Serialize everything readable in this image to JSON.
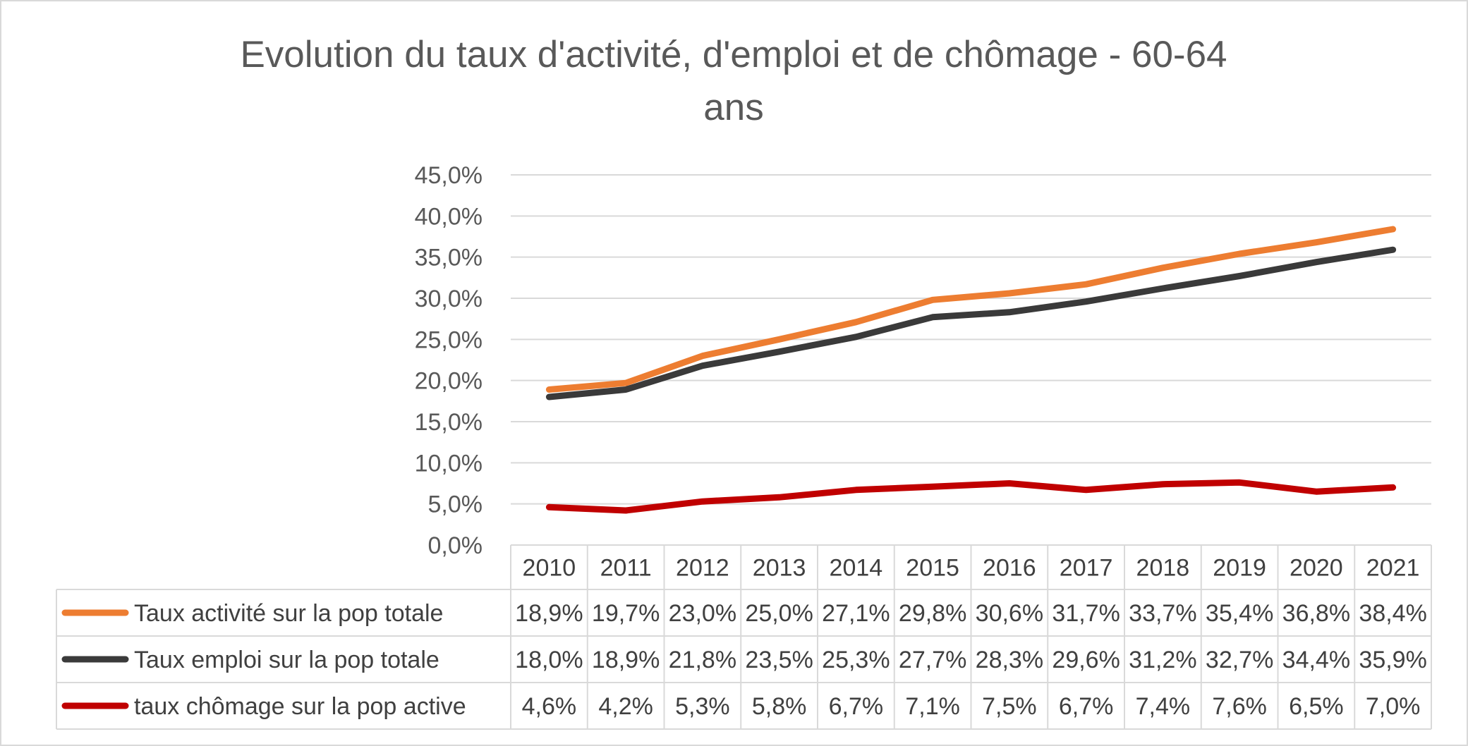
{
  "chart_data": {
    "type": "line",
    "title": "Evolution du taux d'activité, d'emploi et de chômage - 60-64 ans",
    "title_lines": [
      "Evolution du taux d'activité, d'emploi et de chômage - 60-64",
      "ans"
    ],
    "categories": [
      "2010",
      "2011",
      "2012",
      "2013",
      "2014",
      "2015",
      "2016",
      "2017",
      "2018",
      "2019",
      "2020",
      "2021"
    ],
    "ylim": [
      0,
      45
    ],
    "ytick_values": [
      0,
      5,
      10,
      15,
      20,
      25,
      30,
      35,
      40,
      45
    ],
    "ytick_labels": [
      "0,0%",
      "5,0%",
      "10,0%",
      "15,0%",
      "20,0%",
      "25,0%",
      "30,0%",
      "35,0%",
      "40,0%",
      "45,0%"
    ],
    "grid": true,
    "legend_placement": "data table below chart",
    "series": [
      {
        "name": "Taux activité sur la pop totale",
        "color": "#ED7D31",
        "values": [
          18.9,
          19.7,
          23.0,
          25.0,
          27.1,
          29.8,
          30.6,
          31.7,
          33.7,
          35.4,
          36.8,
          38.4
        ],
        "labels": [
          "18,9%",
          "19,7%",
          "23,0%",
          "25,0%",
          "27,1%",
          "29,8%",
          "30,6%",
          "31,7%",
          "33,7%",
          "35,4%",
          "36,8%",
          "38,4%"
        ]
      },
      {
        "name": "Taux emploi sur la pop totale",
        "color": "#3A3A3A",
        "values": [
          18.0,
          18.9,
          21.8,
          23.5,
          25.3,
          27.7,
          28.3,
          29.6,
          31.2,
          32.7,
          34.4,
          35.9
        ],
        "labels": [
          "18,0%",
          "18,9%",
          "21,8%",
          "23,5%",
          "25,3%",
          "27,7%",
          "28,3%",
          "29,6%",
          "31,2%",
          "32,7%",
          "34,4%",
          "35,9%"
        ]
      },
      {
        "name": "taux chômage sur la pop active",
        "color": "#C00000",
        "values": [
          4.6,
          4.2,
          5.3,
          5.8,
          6.7,
          7.1,
          7.5,
          6.7,
          7.4,
          7.6,
          6.5,
          7.0
        ],
        "labels": [
          "4,6%",
          "4,2%",
          "5,3%",
          "5,8%",
          "6,7%",
          "7,1%",
          "7,5%",
          "6,7%",
          "7,4%",
          "7,6%",
          "6,5%",
          "7,0%"
        ]
      }
    ]
  }
}
